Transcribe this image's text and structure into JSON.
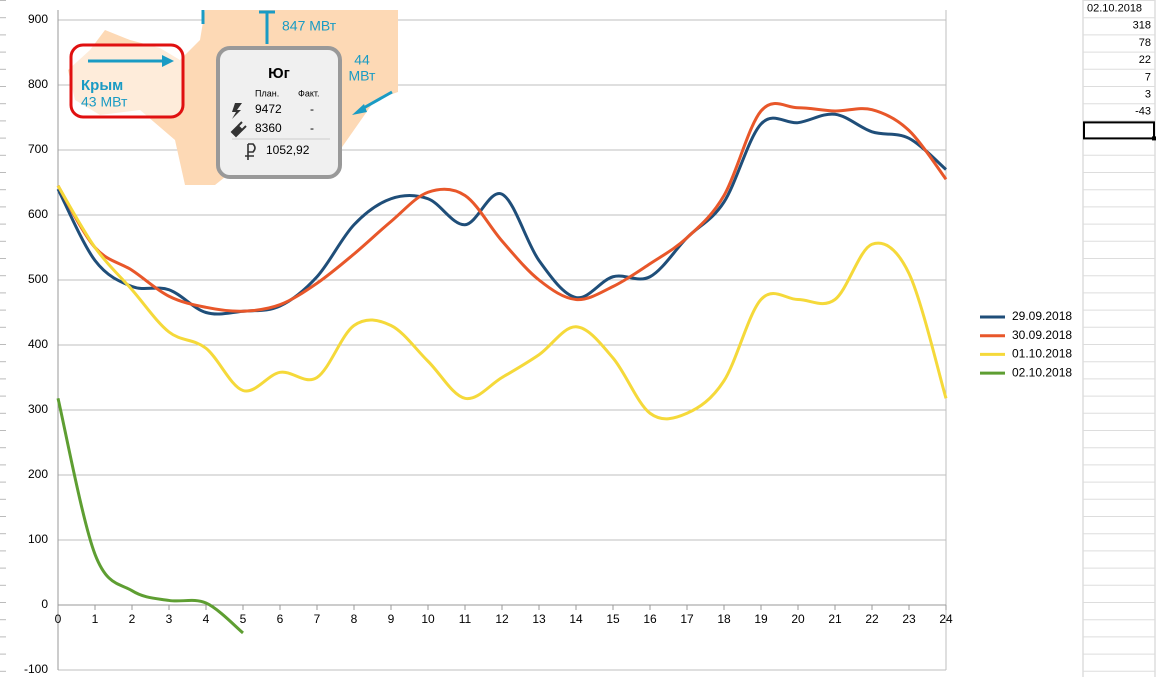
{
  "chart_data": {
    "type": "line",
    "x": [
      0,
      1,
      2,
      3,
      4,
      5,
      6,
      7,
      8,
      9,
      10,
      11,
      12,
      13,
      14,
      15,
      16,
      17,
      18,
      19,
      20,
      21,
      22,
      23,
      24
    ],
    "series": [
      {
        "name": "29.09.2018",
        "color": "#1f4e79",
        "values": [
          640,
          530,
          490,
          485,
          450,
          452,
          460,
          505,
          585,
          625,
          625,
          585,
          632,
          530,
          473,
          505,
          505,
          565,
          620,
          740,
          742,
          755,
          728,
          718,
          670
        ]
      },
      {
        "name": "30.09.2018",
        "color": "#e8572a",
        "values": [
          645,
          550,
          515,
          475,
          458,
          452,
          462,
          495,
          540,
          590,
          635,
          630,
          560,
          500,
          470,
          490,
          525,
          565,
          630,
          760,
          765,
          760,
          762,
          730,
          655
        ]
      },
      {
        "name": "01.10.2018",
        "color": "#f5d93a",
        "values": [
          645,
          550,
          485,
          420,
          395,
          330,
          358,
          350,
          430,
          430,
          375,
          318,
          350,
          385,
          428,
          380,
          295,
          295,
          345,
          470,
          470,
          470,
          555,
          510,
          318
        ]
      },
      {
        "name": "02.10.2018",
        "color": "#5e9e32",
        "values": [
          318,
          78,
          22,
          7,
          3,
          -43,
          null,
          null,
          null,
          null,
          null,
          null,
          null,
          null,
          null,
          null,
          null,
          null,
          null,
          null,
          null,
          null,
          null,
          null,
          null
        ]
      }
    ],
    "xlim": [
      0,
      24
    ],
    "xticks": [
      0,
      1,
      2,
      3,
      4,
      5,
      6,
      7,
      8,
      9,
      10,
      11,
      12,
      13,
      14,
      15,
      16,
      17,
      18,
      19,
      20,
      21,
      22,
      23,
      24
    ],
    "ylim": [
      -100,
      900
    ],
    "yticks": [
      -100,
      0,
      100,
      200,
      300,
      400,
      500,
      600,
      700,
      800,
      900
    ],
    "grid": true,
    "legend": "right"
  },
  "overlay": {
    "north_flow": "847 МВт",
    "east_flow_value": "44",
    "east_flow_unit": "МВт",
    "crimea": {
      "name": "Крым",
      "flow": "43 МВт"
    },
    "region": {
      "name": "Юг",
      "plan_header": "План.",
      "fact_header": "Факт.",
      "rows": [
        {
          "plan": "9472",
          "fact": "-"
        },
        {
          "plan": "8360",
          "fact": "-"
        }
      ],
      "price": "1052,92"
    }
  }
}
